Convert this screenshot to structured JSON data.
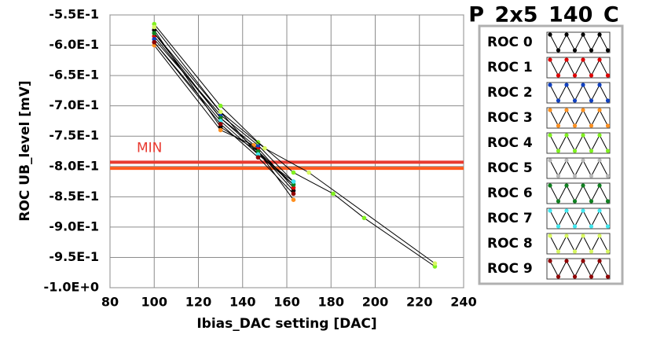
{
  "chart_data": {
    "type": "scatter-line",
    "title": "P_2x5_140_C",
    "x_label": "Ibias_DAC setting [DAC]",
    "y_label": "ROC UB_level [mV]",
    "xlim": [
      80,
      240
    ],
    "xticks": [
      80,
      100,
      120,
      140,
      160,
      180,
      200,
      220,
      240
    ],
    "ylim": [
      -1.0,
      -0.55
    ],
    "yticks": [
      {
        "value": -0.55,
        "label": "-5.5E-1"
      },
      {
        "value": -0.6,
        "label": "-6.0E-1"
      },
      {
        "value": -0.65,
        "label": "-6.5E-1"
      },
      {
        "value": -0.7,
        "label": "-7.0E-1"
      },
      {
        "value": -0.75,
        "label": "-7.5E-1"
      },
      {
        "value": -0.8,
        "label": "-8.0E-1"
      },
      {
        "value": -0.85,
        "label": "-8.5E-1"
      },
      {
        "value": -0.9,
        "label": "-9.0E-1"
      },
      {
        "value": -0.95,
        "label": "-9.5E-1"
      },
      {
        "value": -1.0,
        "label": "-1.0E+0"
      }
    ],
    "grid": true,
    "line_color": "#000000",
    "annotation": "MIN",
    "hlines": [
      {
        "value": -0.793,
        "color": "#e83a30"
      },
      {
        "value": -0.803,
        "color": "#ff5a1e"
      }
    ],
    "series": [
      {
        "name": "ROC 0",
        "color": "#000000",
        "x": [
          100,
          130,
          147,
          163
        ],
        "values": [
          -0.575,
          -0.735,
          -0.775,
          -0.84
        ]
      },
      {
        "name": "ROC 1",
        "color": "#e00000",
        "x": [
          100,
          130,
          147,
          163
        ],
        "values": [
          -0.585,
          -0.72,
          -0.77,
          -0.835
        ]
      },
      {
        "name": "ROC 2",
        "color": "#1040c0",
        "x": [
          100,
          130,
          147,
          163
        ],
        "values": [
          -0.59,
          -0.715,
          -0.765,
          -0.825
        ]
      },
      {
        "name": "ROC 3",
        "color": "#ff9020",
        "x": [
          100,
          130,
          145,
          163
        ],
        "values": [
          -0.6,
          -0.74,
          -0.765,
          -0.855
        ]
      },
      {
        "name": "ROC 4",
        "color": "#80f020",
        "x": [
          100,
          130,
          147,
          163,
          181,
          195,
          227
        ],
        "values": [
          -0.565,
          -0.7,
          -0.76,
          -0.81,
          -0.845,
          -0.885,
          -0.965
        ]
      },
      {
        "name": "ROC 5",
        "color": "#b8b8b8",
        "x": [
          100,
          130,
          147,
          163
        ],
        "values": [
          -0.58,
          -0.71,
          -0.78,
          -0.83
        ]
      },
      {
        "name": "ROC 6",
        "color": "#108020",
        "x": [
          100,
          130,
          147,
          163
        ],
        "values": [
          -0.58,
          -0.72,
          -0.775,
          -0.83
        ]
      },
      {
        "name": "ROC 7",
        "color": "#40e8f0",
        "x": [
          100,
          130,
          147,
          163
        ],
        "values": [
          -0.595,
          -0.725,
          -0.78,
          -0.825
        ]
      },
      {
        "name": "ROC 8",
        "color": "#d8f860",
        "x": [
          100,
          130,
          150,
          170,
          227
        ],
        "values": [
          -0.57,
          -0.71,
          -0.77,
          -0.81,
          -0.96
        ]
      },
      {
        "name": "ROC 9",
        "color": "#900000",
        "x": [
          100,
          130,
          147,
          163
        ],
        "values": [
          -0.595,
          -0.73,
          -0.785,
          -0.845
        ]
      }
    ]
  }
}
